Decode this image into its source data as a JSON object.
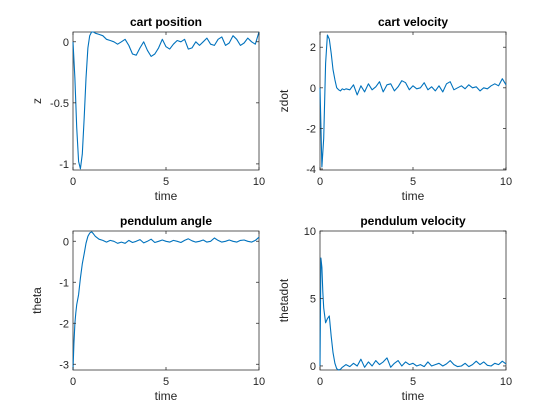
{
  "chart_data": [
    {
      "type": "line",
      "title": "cart position",
      "xlabel": "time",
      "ylabel": "z",
      "xlim": [
        0,
        10
      ],
      "ylim": [
        -1.05,
        0.08
      ],
      "xticks": [
        0,
        5,
        10
      ],
      "yticks": [
        -1,
        -0.5,
        0
      ],
      "xtick_labels": [
        "0",
        "5",
        "10"
      ],
      "ytick_labels": [
        "-1",
        "-0.5",
        "0"
      ],
      "grid": false,
      "color": "#0072bd",
      "x": [
        0,
        0.1,
        0.2,
        0.3,
        0.4,
        0.5,
        0.6,
        0.7,
        0.8,
        0.9,
        1.0,
        1.1,
        1.2,
        1.4,
        1.6,
        1.8,
        2.0,
        2.2,
        2.4,
        2.6,
        2.8,
        3.0,
        3.2,
        3.4,
        3.6,
        3.8,
        4.0,
        4.2,
        4.4,
        4.6,
        4.8,
        5.0,
        5.2,
        5.4,
        5.6,
        5.8,
        6.0,
        6.2,
        6.4,
        6.6,
        6.8,
        7.0,
        7.2,
        7.4,
        7.6,
        7.8,
        8.0,
        8.2,
        8.4,
        8.6,
        8.8,
        9.0,
        9.2,
        9.4,
        9.6,
        9.8,
        10.0
      ],
      "y": [
        0,
        -0.3,
        -0.7,
        -0.98,
        -1.04,
        -0.92,
        -0.62,
        -0.3,
        -0.05,
        0.05,
        0.08,
        0.08,
        0.07,
        0.06,
        0.05,
        0.02,
        0.01,
        0.0,
        -0.02,
        0.0,
        0.02,
        -0.03,
        -0.1,
        -0.11,
        -0.05,
        0.0,
        -0.07,
        -0.12,
        -0.1,
        -0.05,
        0.02,
        -0.04,
        -0.06,
        -0.02,
        0.01,
        0.0,
        0.02,
        -0.06,
        -0.05,
        0.0,
        -0.03,
        0.0,
        0.03,
        -0.02,
        -0.03,
        0.02,
        0.04,
        -0.03,
        -0.01,
        0.05,
        0.02,
        -0.03,
        -0.01,
        0.03,
        0.0,
        -0.02,
        0.08
      ]
    },
    {
      "type": "line",
      "title": "cart velocity",
      "xlabel": "time",
      "ylabel": "zdot",
      "xlim": [
        0,
        10
      ],
      "ylim": [
        -4.05,
        2.75
      ],
      "xticks": [
        0,
        5,
        10
      ],
      "yticks": [
        -4,
        -2,
        0,
        2
      ],
      "xtick_labels": [
        "0",
        "5",
        "10"
      ],
      "ytick_labels": [
        "-4",
        "-2",
        "0",
        "2"
      ],
      "grid": false,
      "color": "#0072bd",
      "x": [
        0,
        0.1,
        0.2,
        0.3,
        0.4,
        0.5,
        0.6,
        0.7,
        0.8,
        0.9,
        1.0,
        1.1,
        1.2,
        1.3,
        1.4,
        1.6,
        1.8,
        2.0,
        2.2,
        2.4,
        2.6,
        2.8,
        3.0,
        3.2,
        3.4,
        3.6,
        3.8,
        4.0,
        4.2,
        4.4,
        4.6,
        4.8,
        5.0,
        5.2,
        5.4,
        5.6,
        5.8,
        6.0,
        6.2,
        6.4,
        6.6,
        6.8,
        7.0,
        7.2,
        7.4,
        7.6,
        7.8,
        8.0,
        8.2,
        8.4,
        8.6,
        8.8,
        9.0,
        9.2,
        9.4,
        9.6,
        9.8,
        10.0
      ],
      "y": [
        0,
        -3.9,
        -2.5,
        1.2,
        2.6,
        2.4,
        1.7,
        0.9,
        0.4,
        0.0,
        -0.1,
        -0.15,
        -0.05,
        -0.1,
        -0.05,
        -0.1,
        0.15,
        -0.35,
        0.1,
        -0.2,
        0.2,
        -0.1,
        0.05,
        0.3,
        -0.2,
        0.15,
        0.2,
        -0.15,
        0.05,
        0.35,
        0.25,
        -0.1,
        0.1,
        -0.05,
        0.0,
        0.25,
        -0.1,
        0.05,
        -0.15,
        0.1,
        -0.2,
        0.2,
        0.3,
        -0.1,
        0.0,
        0.1,
        -0.05,
        0.15,
        0.0,
        0.05,
        -0.15,
        0.0,
        -0.05,
        0.1,
        0.2,
        0.1,
        0.45,
        0.15
      ]
    },
    {
      "type": "line",
      "title": "pendulum angle",
      "xlabel": "time",
      "ylabel": "theta",
      "xlim": [
        0,
        10
      ],
      "ylim": [
        -3.14,
        0.25
      ],
      "xticks": [
        0,
        5,
        10
      ],
      "yticks": [
        -3,
        -2,
        -1,
        0
      ],
      "xtick_labels": [
        "0",
        "5",
        "10"
      ],
      "ytick_labels": [
        "-3",
        "-2",
        "-1",
        "0"
      ],
      "grid": false,
      "color": "#0072bd",
      "x": [
        0,
        0.05,
        0.1,
        0.15,
        0.2,
        0.3,
        0.4,
        0.5,
        0.6,
        0.7,
        0.8,
        0.9,
        1.0,
        1.1,
        1.2,
        1.4,
        1.6,
        1.8,
        2.0,
        2.2,
        2.4,
        2.6,
        2.8,
        3.0,
        3.2,
        3.4,
        3.6,
        3.8,
        4.0,
        4.2,
        4.4,
        4.6,
        4.8,
        5.0,
        5.2,
        5.4,
        5.6,
        5.8,
        6.0,
        6.2,
        6.4,
        6.6,
        6.8,
        7.0,
        7.2,
        7.4,
        7.6,
        7.8,
        8.0,
        8.2,
        8.4,
        8.6,
        8.8,
        9.0,
        9.2,
        9.4,
        9.6,
        9.8,
        10.0
      ],
      "y": [
        -3.14,
        -2.5,
        -2.0,
        -1.75,
        -1.55,
        -1.3,
        -0.9,
        -0.55,
        -0.3,
        -0.05,
        0.12,
        0.2,
        0.23,
        0.18,
        0.12,
        0.05,
        0.02,
        -0.02,
        0.02,
        0.0,
        -0.05,
        -0.02,
        -0.05,
        0.02,
        -0.03,
        0.0,
        0.04,
        -0.04,
        0.0,
        0.05,
        -0.03,
        0.0,
        0.03,
        0.0,
        -0.02,
        0.02,
        0.0,
        -0.03,
        0.02,
        0.06,
        0.01,
        -0.02,
        0.0,
        0.03,
        -0.02,
        0.0,
        0.08,
        0.02,
        -0.02,
        0.0,
        0.03,
        0.0,
        -0.02,
        0.02,
        0.03,
        0.0,
        -0.02,
        0.02,
        0.1
      ]
    },
    {
      "type": "line",
      "title": "pendulum velocity",
      "xlabel": "time",
      "ylabel": "thetadot",
      "xlim": [
        0,
        10
      ],
      "ylim": [
        -0.3,
        10
      ],
      "xticks": [
        0,
        5,
        10
      ],
      "yticks": [
        0,
        5,
        10
      ],
      "xtick_labels": [
        "0",
        "5",
        "10"
      ],
      "ytick_labels": [
        "0",
        "5",
        "10"
      ],
      "grid": false,
      "color": "#0072bd",
      "x": [
        0,
        0.05,
        0.1,
        0.15,
        0.2,
        0.3,
        0.4,
        0.5,
        0.6,
        0.7,
        0.8,
        0.9,
        1.0,
        1.1,
        1.2,
        1.4,
        1.6,
        1.8,
        2.0,
        2.2,
        2.4,
        2.6,
        2.8,
        3.0,
        3.2,
        3.4,
        3.6,
        3.8,
        4.0,
        4.2,
        4.4,
        4.6,
        4.8,
        5.0,
        5.2,
        5.4,
        5.6,
        5.8,
        6.0,
        6.2,
        6.4,
        6.6,
        6.8,
        7.0,
        7.2,
        7.4,
        7.6,
        7.8,
        8.0,
        8.2,
        8.4,
        8.6,
        8.8,
        9.0,
        9.2,
        9.4,
        9.6,
        9.8,
        10.0
      ],
      "y": [
        0,
        8.0,
        7.3,
        5.5,
        4.3,
        3.2,
        3.5,
        3.7,
        2.2,
        1.0,
        0.2,
        -0.2,
        -0.3,
        -0.25,
        -0.1,
        0.1,
        -0.05,
        0.2,
        0.0,
        0.5,
        -0.1,
        0.3,
        0.0,
        0.4,
        0.1,
        0.3,
        0.6,
        -0.1,
        0.2,
        0.4,
        0.0,
        0.3,
        0.1,
        0.2,
        0.0,
        0.1,
        -0.05,
        0.3,
        0.0,
        0.1,
        0.2,
        0.0,
        0.15,
        0.4,
        0.1,
        -0.05,
        0.0,
        0.2,
        -0.05,
        0.1,
        0.35,
        0.1,
        0.3,
        0.05,
        0.0,
        0.2,
        0.1,
        0.35,
        0.15
      ]
    }
  ]
}
